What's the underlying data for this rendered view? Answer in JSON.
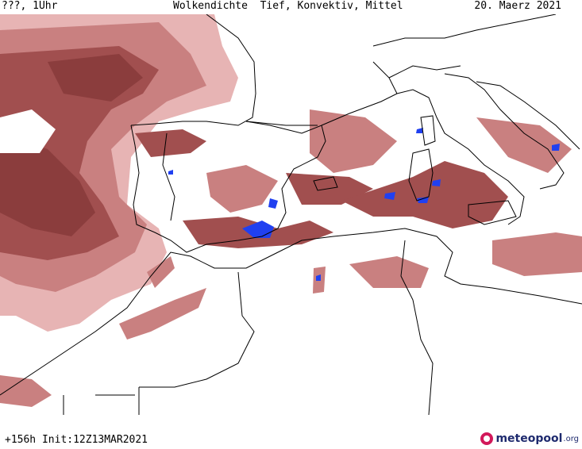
{
  "header": {
    "left": "???, 1Uhr",
    "center": "Wolkendichte  Tief, Konvektiv, Mittel",
    "right": "20. Maerz 2021"
  },
  "footer": {
    "run": "+156h Init:12Z13MAR2021",
    "logo_name": "meteopool",
    "logo_tld": ".org"
  },
  "map": {
    "region": "Western Mediterranean",
    "colors": {
      "cloud_light": "#e7b4b4",
      "cloud_mid": "#c98080",
      "cloud_dark": "#a14f4f",
      "cloud_darkest": "#8b3d3d",
      "convective": "#2040f0",
      "coastline": "#000000",
      "background": "#ffffff"
    }
  }
}
